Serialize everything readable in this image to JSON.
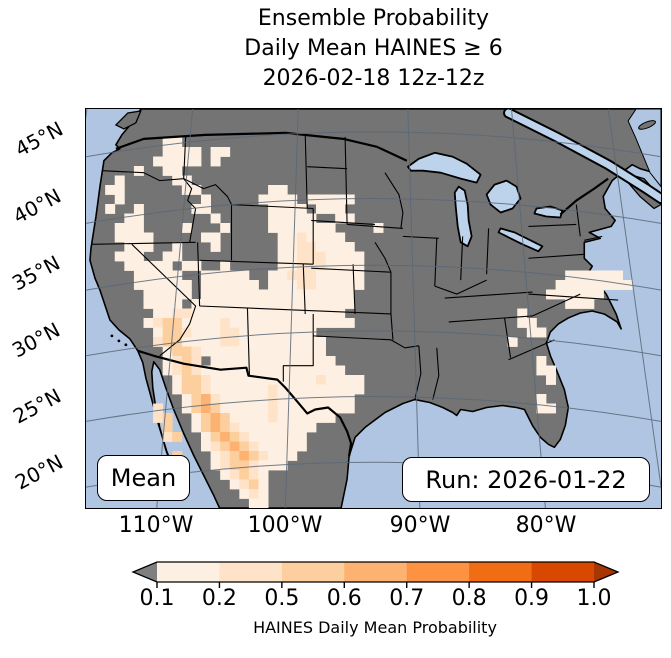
{
  "title": {
    "line1": "Ensemble Probability",
    "line2": "Daily Mean HAINES ≥ 6",
    "line3": "2026-02-18 12z-12z"
  },
  "map": {
    "lat_labels": [
      "45°N",
      "40°N",
      "35°N",
      "30°N",
      "25°N",
      "20°N"
    ],
    "lon_labels": [
      "110°W",
      "100°W",
      "90°W",
      "80°W"
    ],
    "mean_label": "Mean",
    "run_label": "Run: 2026-01-22"
  },
  "colors": {
    "ocean": "#b0c5e1",
    "land": "#747474",
    "lake": "#bdd3ec",
    "grid": "#5a6878",
    "coast": "#000000"
  },
  "chart_data": {
    "type": "heatmap",
    "title": "Ensemble Probability Daily Mean HAINES ≥ 6, 2026-02-18 12z-12z",
    "projection": "Lambert Conformal over CONUS and northern Mexico",
    "colorbar": {
      "label": "HAINES Daily Mean Probability",
      "ticks": [
        "0.1",
        "0.2",
        "0.5",
        "0.6",
        "0.7",
        "0.8",
        "0.9",
        "1.0"
      ],
      "bin_colors": [
        "#fdf0e2",
        "#fee3c8",
        "#fdce9e",
        "#fdb272",
        "#fd9243",
        "#f16d13",
        "#d94801"
      ],
      "under_color": "#7f7f7f",
      "over_color": "#a63603"
    },
    "palette": {
      "1": "#fdf0e2",
      "2": "#fee3c8",
      "3": "#fdce9e",
      "4": "#fdb272",
      "5": "#fd9243",
      "6": "#f16d13",
      "7": "#d94801"
    },
    "grid_note": "60x42 cells over map; digits = probability bin (1: 0.1-0.2 ... 7: 0.9-1.0), dot = below 0.1 (masked gray land)",
    "grid": [
      "............................................................",
      "............................................................",
      "............................................................",
      "........11..................................................",
      "........1111.11.............................................",
      ".......11111.1..............................................",
      ".....1..11..................................................",
      "...1.....11.................................................",
      "..11......11.......11.......................................",
      "...1........1.....1111.11111................................",
      "..1..1.....11......1111.111.................................",
      "....11.......1.....11111..11................................",
      "...111....1...1....1111111....1.............................",
      "...1111.....11......1121111.................................",
      "....111..1...1......11221111................................",
      "...111..11..........112221111...............................",
      "....11111.11..1.....112221111...............................",
      ".....11111..11111..1122211111.....................111111....",
      ".....111111.111111.1112211111....................11111111...",
      "......11111.1111111111111111....................111111......",
      "......1111.11111111111111111......................111.......",
      ".......11221111111111111111..................1..............",
      "......1233111121111111111111.................11.............",
      ".......13321112211111111......................11............",
      ".......233111122111111111...................1...............",
      "........13321111111111111...................................",
      "........1232.1111111111111.....................1............",
      "........1232111111111111111....................11...........",
      ".........13321111111111121111...................1...........",
      ".........13321111112111111111...............................",
      "..........134211111211111111...................1............",
      ".......2..134311111211111111...................11...........",
      ".......23..134311112111111..................................",
      "........3..1343211111111....................................",
      "........23..13432111111.....................................",
      "............12343211111.....................................",
      ".........3...123432111......................................",
      ".............12332111.......................................",
      "..............12321.........................................",
      "...............1231.........................................",
      "................121.........................................",
      ".................11........................................."
    ]
  }
}
